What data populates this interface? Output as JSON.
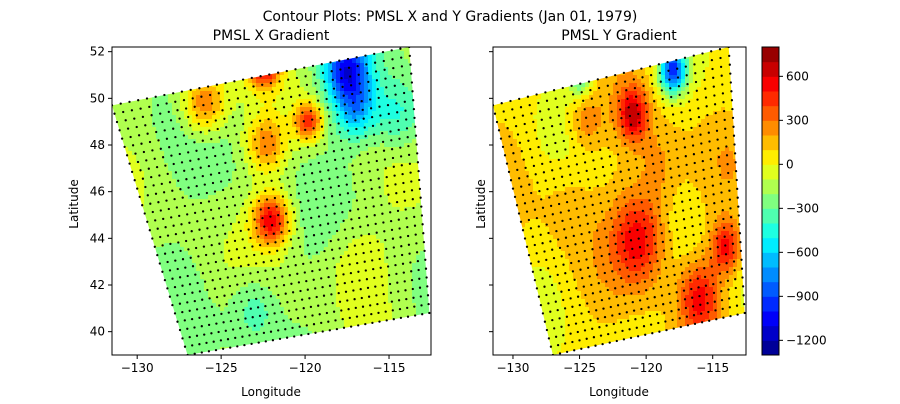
{
  "figure": {
    "suptitle": "Contour Plots: PMSL X and Y Gradients (Jan 01, 1979)"
  },
  "colors": {
    "colormap": "jet",
    "stops": [
      "#00007f",
      "#0000ff",
      "#007fff",
      "#00ffff",
      "#7fff7f",
      "#ffff00",
      "#ff7f00",
      "#ff0000",
      "#7f0000"
    ],
    "grid_dots": "#000000"
  },
  "chart_data": [
    {
      "type": "heatmap",
      "title": "PMSL X Gradient",
      "xlabel": "Longitude",
      "ylabel": "Latitude",
      "xlim": [
        -131.5,
        -112.5
      ],
      "ylim": [
        39,
        52.2
      ],
      "xticks": [
        -130,
        -125,
        -120,
        -115
      ],
      "xtick_labels": [
        "−130",
        "−125",
        "−120",
        "−115"
      ],
      "yticks": [
        40,
        42,
        44,
        46,
        48,
        50,
        52
      ],
      "ytick_labels": [
        "40",
        "42",
        "44",
        "46",
        "48",
        "50",
        "52"
      ],
      "domain_corners": {
        "top_left": [
          -131.5,
          49.7
        ],
        "top_right": [
          -113.8,
          52.2
        ],
        "bottom_right": [
          -112.6,
          40.8
        ],
        "bottom_left": [
          -127.0,
          39.0
        ]
      },
      "grid_points_overlay": true,
      "features": [
        {
          "lon": -126.0,
          "lat": 49.8,
          "value": 350,
          "radius": 1.3
        },
        {
          "lon": -122.5,
          "lat": 51.5,
          "value": 600,
          "radius": 1.0
        },
        {
          "lon": -122.3,
          "lat": 48.0,
          "value": 250,
          "radius": 1.2
        },
        {
          "lon": -122.0,
          "lat": 44.8,
          "value": 550,
          "radius": 1.1
        },
        {
          "lon": -119.8,
          "lat": 49.0,
          "value": 450,
          "radius": 0.8
        },
        {
          "lon": -117.5,
          "lat": 51.2,
          "value": -1000,
          "radius": 1.3
        },
        {
          "lon": -117.0,
          "lat": 49.5,
          "value": -650,
          "radius": 1.2
        },
        {
          "lon": -114.5,
          "lat": 49.3,
          "value": -450,
          "radius": 1.5
        },
        {
          "lon": -123.0,
          "lat": 41.0,
          "value": -400,
          "radius": 1.4
        },
        {
          "lon": -117.0,
          "lat": 43.0,
          "value": 0,
          "radius": 2.0
        }
      ],
      "background_value": -180
    },
    {
      "type": "heatmap",
      "title": "PMSL Y Gradient",
      "xlabel": "Longitude",
      "ylabel": "Latitude",
      "xlim": [
        -131.5,
        -112.5
      ],
      "ylim": [
        39,
        52.2
      ],
      "xticks": [
        -130,
        -125,
        -120,
        -115
      ],
      "xtick_labels": [
        "−130",
        "−125",
        "−120",
        "−115"
      ],
      "yticks": [
        40,
        42,
        44,
        46,
        48,
        50,
        52
      ],
      "ytick_labels": [
        "",
        "",
        "",
        "",
        "",
        "",
        ""
      ],
      "domain_corners": {
        "top_left": [
          -131.5,
          49.7
        ],
        "top_right": [
          -113.8,
          52.2
        ],
        "bottom_right": [
          -112.6,
          40.8
        ],
        "bottom_left": [
          -127.0,
          39.0
        ]
      },
      "grid_points_overlay": true,
      "features": [
        {
          "lon": -121.0,
          "lat": 49.3,
          "value": 600,
          "radius": 1.1
        },
        {
          "lon": -124.5,
          "lat": 49.0,
          "value": 300,
          "radius": 1.2
        },
        {
          "lon": -118.0,
          "lat": 51.2,
          "value": -900,
          "radius": 1.0
        },
        {
          "lon": -125.0,
          "lat": 51.0,
          "value": -400,
          "radius": 0.9
        },
        {
          "lon": -120.5,
          "lat": 44.0,
          "value": 600,
          "radius": 2.0
        },
        {
          "lon": -114.0,
          "lat": 43.6,
          "value": 550,
          "radius": 1.1
        },
        {
          "lon": -116.0,
          "lat": 41.5,
          "value": 500,
          "radius": 1.5
        },
        {
          "lon": -119.0,
          "lat": 47.0,
          "value": 250,
          "radius": 1.8
        },
        {
          "lon": -126.0,
          "lat": 45.5,
          "value": 150,
          "radius": 2.0
        },
        {
          "lon": -113.5,
          "lat": 47.5,
          "value": 100,
          "radius": 1.5
        }
      ],
      "background_value": 60
    }
  ],
  "colorbar": {
    "vmin": -1300,
    "vmax": 800,
    "levels": 21,
    "ticks": [
      600,
      300,
      0,
      -300,
      -600,
      -900,
      -1200
    ],
    "tick_labels": [
      "600",
      "300",
      "0",
      "−300",
      "−600",
      "−900",
      "−1200"
    ]
  }
}
